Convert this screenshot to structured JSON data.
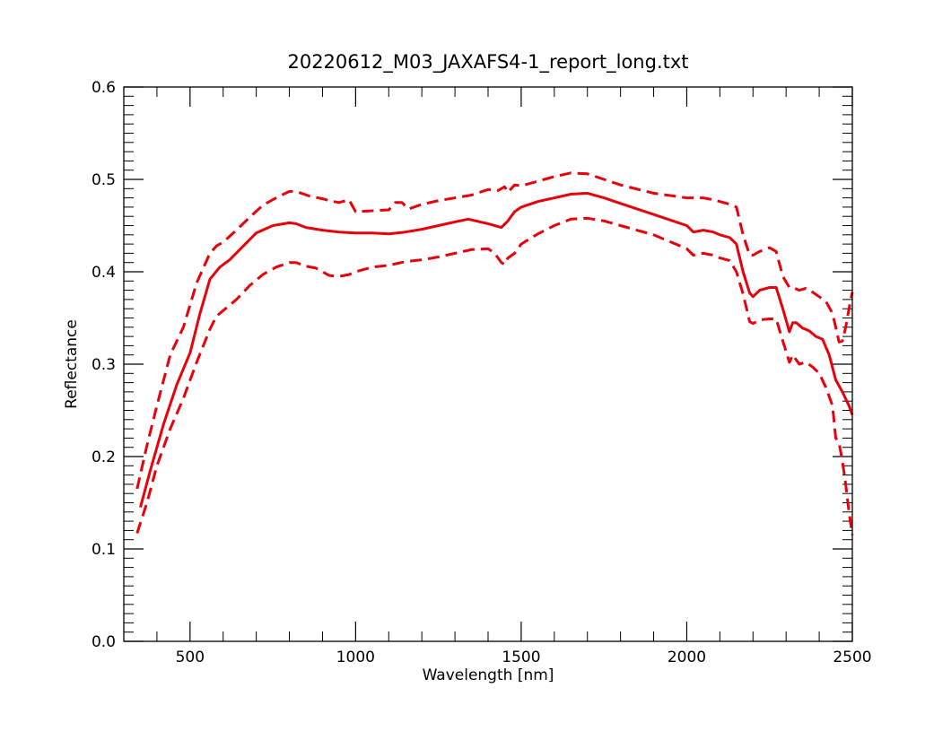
{
  "chart_data": {
    "type": "line",
    "title": "20220612_M03_JAXAFS4-1_report_long.txt",
    "xlabel": "Wavelength [nm]",
    "ylabel": "Reflectance",
    "xlim": [
      300,
      2500
    ],
    "ylim": [
      0.0,
      0.6
    ],
    "x_ticks": [
      500,
      1000,
      1500,
      2000,
      2500
    ],
    "y_ticks": [
      0.0,
      0.1,
      0.2,
      0.3,
      0.4,
      0.5,
      0.6
    ],
    "x_tick_labels": [
      "500",
      "1000",
      "1500",
      "2000",
      "2500"
    ],
    "y_tick_labels": [
      "0.0",
      "0.1",
      "0.2",
      "0.3",
      "0.4",
      "0.5",
      "0.6"
    ],
    "grid": false,
    "legend": "none",
    "color": "#e8000b",
    "series": [
      {
        "style": "solid",
        "x": [
          350,
          380,
          420,
          460,
          500,
          530,
          560,
          590,
          620,
          650,
          700,
          750,
          800,
          820,
          850,
          900,
          950,
          1000,
          1050,
          1100,
          1150,
          1200,
          1250,
          1300,
          1340,
          1400,
          1440,
          1460,
          1480,
          1500,
          1550,
          1600,
          1650,
          1700,
          1750,
          1800,
          1900,
          2000,
          2020,
          2050,
          2080,
          2100,
          2130,
          2150,
          2170,
          2190,
          2200,
          2220,
          2250,
          2270,
          2290,
          2310,
          2320,
          2330,
          2350,
          2370,
          2390,
          2410,
          2430,
          2450,
          2470,
          2490,
          2500
        ],
        "y": [
          0.145,
          0.185,
          0.235,
          0.278,
          0.312,
          0.355,
          0.392,
          0.405,
          0.413,
          0.424,
          0.442,
          0.45,
          0.453,
          0.452,
          0.448,
          0.445,
          0.443,
          0.442,
          0.442,
          0.441,
          0.443,
          0.446,
          0.45,
          0.454,
          0.457,
          0.452,
          0.448,
          0.455,
          0.465,
          0.47,
          0.476,
          0.48,
          0.484,
          0.485,
          0.48,
          0.474,
          0.462,
          0.45,
          0.443,
          0.445,
          0.443,
          0.44,
          0.437,
          0.43,
          0.4,
          0.377,
          0.373,
          0.38,
          0.383,
          0.383,
          0.36,
          0.335,
          0.345,
          0.345,
          0.339,
          0.336,
          0.33,
          0.327,
          0.31,
          0.283,
          0.27,
          0.255,
          0.245
        ]
      },
      {
        "style": "dashed",
        "x": [
          340,
          370,
          400,
          440,
          480,
          520,
          560,
          580,
          600,
          640,
          680,
          720,
          760,
          800,
          820,
          860,
          900,
          920,
          950,
          980,
          1000,
          1050,
          1100,
          1120,
          1140,
          1160,
          1200,
          1250,
          1300,
          1350,
          1400,
          1430,
          1450,
          1460,
          1480,
          1500,
          1550,
          1600,
          1650,
          1700,
          1750,
          1800,
          1900,
          2000,
          2050,
          2080,
          2100,
          2130,
          2150,
          2170,
          2190,
          2200,
          2220,
          2250,
          2270,
          2290,
          2310,
          2320,
          2340,
          2360,
          2380,
          2400,
          2420,
          2440,
          2450,
          2460,
          2470,
          2480,
          2490,
          2500
        ],
        "y": [
          0.165,
          0.212,
          0.255,
          0.31,
          0.34,
          0.388,
          0.42,
          0.428,
          0.432,
          0.445,
          0.459,
          0.472,
          0.48,
          0.487,
          0.487,
          0.482,
          0.479,
          0.477,
          0.475,
          0.478,
          0.465,
          0.466,
          0.467,
          0.475,
          0.475,
          0.468,
          0.473,
          0.477,
          0.48,
          0.483,
          0.489,
          0.488,
          0.492,
          0.486,
          0.494,
          0.493,
          0.498,
          0.503,
          0.507,
          0.506,
          0.5,
          0.494,
          0.485,
          0.48,
          0.48,
          0.478,
          0.476,
          0.473,
          0.47,
          0.44,
          0.418,
          0.418,
          0.422,
          0.426,
          0.422,
          0.395,
          0.383,
          0.383,
          0.38,
          0.382,
          0.378,
          0.373,
          0.368,
          0.355,
          0.34,
          0.324,
          0.325,
          0.34,
          0.36,
          0.378
        ]
      },
      {
        "style": "dashed",
        "x": [
          340,
          370,
          400,
          440,
          480,
          520,
          560,
          580,
          600,
          640,
          680,
          720,
          760,
          800,
          820,
          850,
          880,
          900,
          920,
          950,
          980,
          1000,
          1050,
          1100,
          1150,
          1200,
          1250,
          1300,
          1350,
          1400,
          1420,
          1440,
          1450,
          1460,
          1480,
          1500,
          1550,
          1600,
          1650,
          1700,
          1750,
          1800,
          1900,
          2000,
          2020,
          2050,
          2080,
          2100,
          2130,
          2150,
          2170,
          2190,
          2200,
          2220,
          2250,
          2270,
          2290,
          2310,
          2320,
          2340,
          2360,
          2380,
          2400,
          2420,
          2440,
          2450,
          2460,
          2470,
          2480,
          2490,
          2500
        ],
        "y": [
          0.117,
          0.15,
          0.19,
          0.23,
          0.263,
          0.302,
          0.338,
          0.352,
          0.358,
          0.37,
          0.385,
          0.397,
          0.405,
          0.41,
          0.41,
          0.406,
          0.404,
          0.4,
          0.396,
          0.395,
          0.397,
          0.4,
          0.405,
          0.407,
          0.411,
          0.413,
          0.416,
          0.42,
          0.424,
          0.425,
          0.42,
          0.41,
          0.408,
          0.415,
          0.42,
          0.43,
          0.441,
          0.45,
          0.457,
          0.458,
          0.455,
          0.45,
          0.44,
          0.425,
          0.418,
          0.42,
          0.418,
          0.415,
          0.412,
          0.4,
          0.376,
          0.346,
          0.344,
          0.348,
          0.349,
          0.349,
          0.325,
          0.302,
          0.31,
          0.3,
          0.302,
          0.297,
          0.29,
          0.275,
          0.255,
          0.22,
          0.215,
          0.195,
          0.17,
          0.14,
          0.115
        ]
      }
    ]
  }
}
